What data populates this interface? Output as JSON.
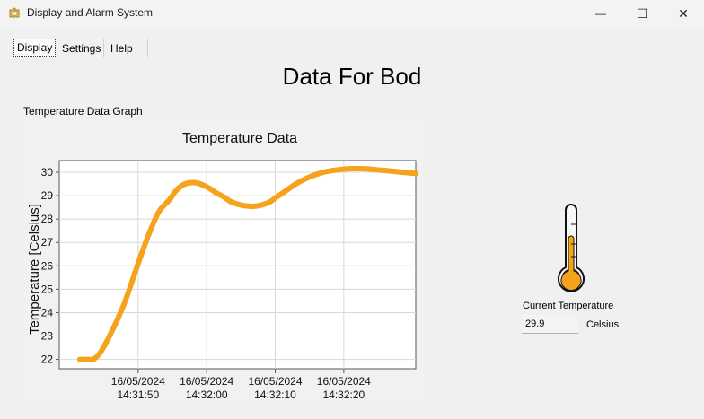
{
  "window": {
    "title": "Display and Alarm System",
    "minimize": "—",
    "maximize": "☐",
    "close": "✕"
  },
  "tabs": [
    {
      "label": "Display",
      "active": true
    },
    {
      "label": "Settings",
      "active": false
    },
    {
      "label": "Help",
      "active": false
    }
  ],
  "page_title": "Data For Bod",
  "graph_label": "Temperature Data Graph",
  "colors": {
    "line": "#f5a31d",
    "grid": "#d8d8d8"
  },
  "chart_data": {
    "type": "line",
    "title": "Temperature Data",
    "xlabel": "",
    "ylabel": "Temperature [Celsius]",
    "ylim": [
      21.6,
      30.5
    ],
    "xlim_seconds": [
      -11.5,
      40.5
    ],
    "x_ticks": [
      {
        "t": 0,
        "date": "16/05/2024",
        "time": "14:31:50"
      },
      {
        "t": 10,
        "date": "16/05/2024",
        "time": "14:32:00"
      },
      {
        "t": 20,
        "date": "16/05/2024",
        "time": "14:32:10"
      },
      {
        "t": 30,
        "date": "16/05/2024",
        "time": "14:32:20"
      }
    ],
    "y_ticks": [
      22,
      23,
      24,
      25,
      26,
      27,
      28,
      29,
      30
    ],
    "grid": true,
    "series": [
      {
        "x": [
          -8.5,
          -7,
          -6.5,
          -5.5,
          -4,
          -2,
          0,
          1.5,
          3,
          4.5,
          5.5,
          6.5,
          7.5,
          8.5,
          9.5,
          10.5,
          11.5,
          12.5,
          13.5,
          15,
          17,
          19,
          20,
          21.5,
          23,
          25,
          27,
          29,
          31,
          33,
          35,
          37,
          38.5,
          40.5
        ],
        "y": [
          22,
          22,
          22,
          22.3,
          23.1,
          24.4,
          26.1,
          27.3,
          28.3,
          28.8,
          29.2,
          29.45,
          29.55,
          29.55,
          29.45,
          29.3,
          29.1,
          28.95,
          28.75,
          28.6,
          28.55,
          28.7,
          28.9,
          29.2,
          29.5,
          29.8,
          30.0,
          30.1,
          30.15,
          30.15,
          30.1,
          30.05,
          30.0,
          29.95
        ]
      }
    ]
  },
  "thermometer": {
    "level": 0.55,
    "fill_color": "#f5a31d"
  },
  "current": {
    "label": "Current Temperature",
    "value": "29.9",
    "unit": "Celsius"
  }
}
